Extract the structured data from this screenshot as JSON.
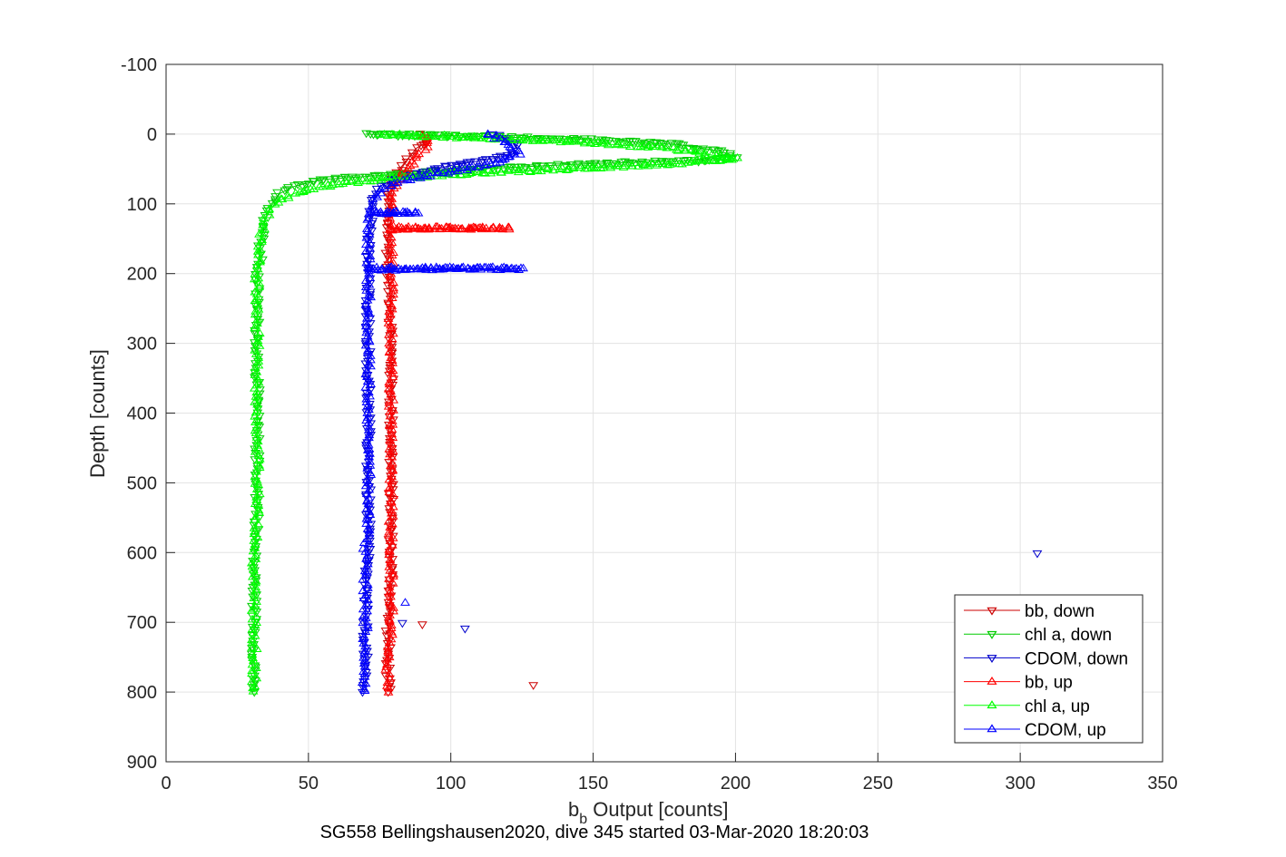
{
  "chart_data": {
    "type": "line",
    "title": "",
    "xlabel_main": "b",
    "xlabel_sub": "b",
    "xlabel_rest": " Output [counts]",
    "ylabel": "Depth [counts]",
    "caption": "SG558 Bellingshausen2020, dive 345 started 03-Mar-2020 18:20:03",
    "xlim": [
      0,
      350
    ],
    "ylim": [
      -100,
      900
    ],
    "y_reversed": true,
    "grid": true,
    "legend_position": "bottom-right",
    "x_ticks": [
      0,
      50,
      100,
      150,
      200,
      250,
      300,
      350
    ],
    "y_ticks": [
      -100,
      0,
      100,
      200,
      300,
      400,
      500,
      600,
      700,
      800,
      900
    ],
    "series": [
      {
        "name": "bb, down",
        "color": "#cc0000",
        "marker": "triangle-down",
        "points": [
          [
            89,
            0
          ],
          [
            91,
            5
          ],
          [
            92,
            10
          ],
          [
            90,
            15
          ],
          [
            88,
            20
          ],
          [
            86,
            30
          ],
          [
            84,
            40
          ],
          [
            82,
            50
          ],
          [
            80,
            60
          ],
          [
            79,
            70
          ],
          [
            78,
            80
          ],
          [
            78,
            90
          ],
          [
            78,
            100
          ],
          [
            78,
            120
          ],
          [
            78,
            140
          ],
          [
            78,
            160
          ],
          [
            78,
            180
          ],
          [
            78,
            200
          ],
          [
            79,
            250
          ],
          [
            79,
            300
          ],
          [
            79,
            350
          ],
          [
            79,
            400
          ],
          [
            79,
            450
          ],
          [
            79,
            500
          ],
          [
            79,
            550
          ],
          [
            79,
            600
          ],
          [
            79,
            650
          ],
          [
            78,
            700
          ],
          [
            78,
            750
          ],
          [
            78,
            800
          ]
        ]
      },
      {
        "name": "chl a, down",
        "color": "#00cc00",
        "marker": "triangle-down",
        "points": [
          [
            70,
            0
          ],
          [
            100,
            2
          ],
          [
            150,
            8
          ],
          [
            180,
            15
          ],
          [
            195,
            25
          ],
          [
            200,
            32
          ],
          [
            185,
            38
          ],
          [
            150,
            42
          ],
          [
            110,
            50
          ],
          [
            80,
            58
          ],
          [
            55,
            65
          ],
          [
            45,
            75
          ],
          [
            40,
            85
          ],
          [
            37,
            100
          ],
          [
            35,
            120
          ],
          [
            34,
            140
          ],
          [
            33,
            160
          ],
          [
            33,
            180
          ],
          [
            32,
            200
          ],
          [
            32,
            250
          ],
          [
            32,
            300
          ],
          [
            32,
            350
          ],
          [
            32,
            400
          ],
          [
            32,
            450
          ],
          [
            32,
            500
          ],
          [
            32,
            550
          ],
          [
            31,
            600
          ],
          [
            31,
            650
          ],
          [
            31,
            700
          ],
          [
            31,
            750
          ],
          [
            31,
            800
          ]
        ]
      },
      {
        "name": "CDOM, down",
        "color": "#0000cc",
        "marker": "triangle-down",
        "points": [
          [
            115,
            0
          ],
          [
            120,
            8
          ],
          [
            124,
            18
          ],
          [
            122,
            28
          ],
          [
            115,
            35
          ],
          [
            100,
            45
          ],
          [
            90,
            55
          ],
          [
            80,
            65
          ],
          [
            75,
            75
          ],
          [
            73,
            90
          ],
          [
            72,
            110
          ],
          [
            72,
            130
          ],
          [
            71,
            150
          ],
          [
            71,
            170
          ],
          [
            71,
            190
          ],
          [
            71,
            220
          ],
          [
            71,
            250
          ],
          [
            71,
            300
          ],
          [
            71,
            350
          ],
          [
            71,
            400
          ],
          [
            71,
            450
          ],
          [
            71,
            500
          ],
          [
            71,
            550
          ],
          [
            71,
            600
          ],
          [
            70,
            650
          ],
          [
            70,
            700
          ],
          [
            70,
            750
          ],
          [
            69,
            800
          ]
        ]
      },
      {
        "name": "bb, up",
        "color": "#ff0000",
        "marker": "triangle-up",
        "points": [
          [
            78,
            800
          ],
          [
            78,
            750
          ],
          [
            79,
            700
          ],
          [
            79,
            650
          ],
          [
            79,
            600
          ],
          [
            79,
            550
          ],
          [
            79,
            500
          ],
          [
            79,
            450
          ],
          [
            79,
            400
          ],
          [
            79,
            350
          ],
          [
            79,
            300
          ],
          [
            79,
            250
          ],
          [
            79,
            200
          ],
          [
            79,
            160
          ],
          [
            79,
            135
          ],
          [
            121,
            135
          ],
          [
            79,
            136
          ],
          [
            79,
            120
          ],
          [
            79,
            100
          ],
          [
            80,
            80
          ],
          [
            82,
            65
          ],
          [
            85,
            50
          ],
          [
            88,
            35
          ],
          [
            91,
            20
          ],
          [
            92,
            8
          ],
          [
            90,
            2
          ]
        ]
      },
      {
        "name": "chl a, up",
        "color": "#00ff00",
        "marker": "triangle-up",
        "points": [
          [
            31,
            800
          ],
          [
            31,
            750
          ],
          [
            31,
            700
          ],
          [
            31,
            650
          ],
          [
            31,
            600
          ],
          [
            32,
            550
          ],
          [
            32,
            500
          ],
          [
            32,
            450
          ],
          [
            32,
            400
          ],
          [
            32,
            350
          ],
          [
            32,
            300
          ],
          [
            32,
            250
          ],
          [
            32,
            200
          ],
          [
            33,
            160
          ],
          [
            34,
            130
          ],
          [
            36,
            110
          ],
          [
            40,
            95
          ],
          [
            45,
            85
          ],
          [
            55,
            75
          ],
          [
            75,
            65
          ],
          [
            100,
            58
          ],
          [
            140,
            50
          ],
          [
            180,
            42
          ],
          [
            200,
            35
          ],
          [
            175,
            20
          ],
          [
            140,
            10
          ],
          [
            100,
            4
          ],
          [
            75,
            1
          ]
        ]
      },
      {
        "name": "CDOM, up",
        "color": "#0000ff",
        "marker": "triangle-up",
        "points": [
          [
            69,
            800
          ],
          [
            70,
            750
          ],
          [
            70,
            700
          ],
          [
            70,
            650
          ],
          [
            70,
            600
          ],
          [
            71,
            550
          ],
          [
            71,
            500
          ],
          [
            71,
            450
          ],
          [
            71,
            400
          ],
          [
            71,
            350
          ],
          [
            71,
            300
          ],
          [
            71,
            250
          ],
          [
            71,
            200
          ],
          [
            71,
            194
          ],
          [
            125,
            193
          ],
          [
            71,
            192
          ],
          [
            71,
            160
          ],
          [
            71,
            130
          ],
          [
            72,
            113
          ],
          [
            88,
            113
          ],
          [
            72,
            112
          ],
          [
            73,
            95
          ],
          [
            76,
            80
          ],
          [
            82,
            68
          ],
          [
            95,
            58
          ],
          [
            108,
            48
          ],
          [
            118,
            38
          ],
          [
            124,
            28
          ],
          [
            120,
            15
          ],
          [
            116,
            5
          ],
          [
            113,
            0
          ]
        ]
      }
    ],
    "outliers": [
      {
        "series": "CDOM, down",
        "x": 306,
        "y": 601
      },
      {
        "series": "CDOM, down",
        "x": 105,
        "y": 709
      },
      {
        "series": "bb, down",
        "x": 129,
        "y": 790
      },
      {
        "series": "bb, down",
        "x": 90,
        "y": 703
      },
      {
        "series": "CDOM, down",
        "x": 83,
        "y": 701
      },
      {
        "series": "CDOM, up",
        "x": 84,
        "y": 672
      }
    ]
  }
}
